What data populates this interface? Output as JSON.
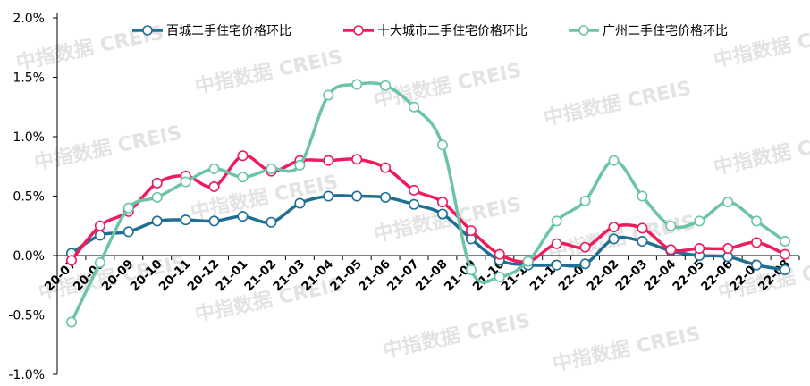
{
  "chart_data": {
    "type": "line",
    "title": "",
    "xlabel": "",
    "ylabel": "",
    "ylim": [
      -1.0,
      2.0
    ],
    "yticks": [
      "-1.0%",
      "-0.5%",
      "0.0%",
      "0.5%",
      "1.0%",
      "1.5%",
      "2.0%"
    ],
    "ytick_values": [
      -1.0,
      -0.5,
      0.0,
      0.5,
      1.0,
      1.5,
      2.0
    ],
    "grid": false,
    "legend_position": "top",
    "categories": [
      "20-07",
      "20-08",
      "20-09",
      "20-10",
      "20-11",
      "20-12",
      "21-01",
      "21-02",
      "21-03",
      "21-04",
      "21-05",
      "21-06",
      "21-07",
      "21-08",
      "21-09",
      "21-10",
      "21-11",
      "21-12",
      "22-01",
      "22-02",
      "22-03",
      "22-04",
      "22-05",
      "22-06",
      "22-07",
      "22-08"
    ],
    "series": [
      {
        "name": "百城二手住宅价格环比",
        "color": "#1f6e94",
        "values": [
          0.02,
          0.17,
          0.2,
          0.29,
          0.3,
          0.29,
          0.33,
          0.28,
          0.44,
          0.5,
          0.5,
          0.49,
          0.43,
          0.35,
          0.14,
          -0.04,
          -0.08,
          -0.08,
          -0.07,
          0.14,
          0.12,
          0.04,
          0.0,
          -0.01,
          -0.08,
          -0.12
        ]
      },
      {
        "name": "十大城市二手住宅价格环比",
        "color": "#ee1c5c",
        "values": [
          -0.04,
          0.25,
          0.37,
          0.61,
          0.67,
          0.58,
          0.84,
          0.71,
          0.8,
          0.8,
          0.81,
          0.74,
          0.55,
          0.45,
          0.21,
          0.01,
          -0.05,
          0.1,
          0.07,
          0.24,
          0.23,
          0.05,
          0.06,
          0.06,
          0.11,
          0.01
        ]
      },
      {
        "name": "广州二手住宅价格环比",
        "color": "#6cc4a6",
        "values": [
          -0.56,
          -0.06,
          0.4,
          0.49,
          0.62,
          0.73,
          0.66,
          0.73,
          0.76,
          1.35,
          1.44,
          1.43,
          1.25,
          0.93,
          -0.12,
          -0.18,
          -0.05,
          0.29,
          0.46,
          0.8,
          0.5,
          0.25,
          0.29,
          0.45,
          0.29,
          0.12
        ]
      }
    ]
  },
  "watermark": {
    "text": "中指数据 CREIS"
  }
}
